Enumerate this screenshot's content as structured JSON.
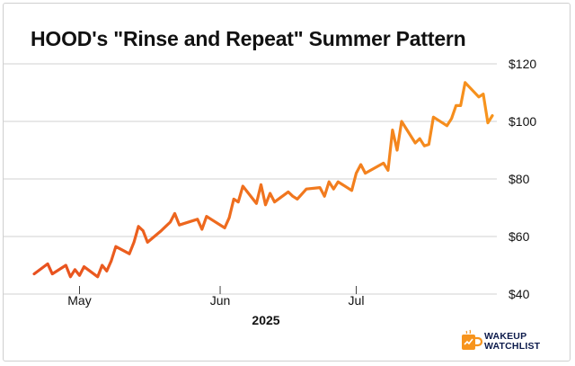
{
  "title": "HOOD's \"Rinse and Repeat\" Summer Pattern",
  "logo": {
    "line1": "WAKEUP",
    "line2": "WATCHLIST"
  },
  "colors": {
    "gradient_start": "#e8501f",
    "gradient_end": "#f7941d",
    "grid": "#d0d0d0",
    "text": "#111111"
  },
  "chart_data": {
    "type": "line",
    "title": "HOOD's \"Rinse and Repeat\" Summer Pattern",
    "xlabel": "2025",
    "ylabel": "",
    "ylim": [
      40,
      125
    ],
    "xlim": [
      "2025-04-21",
      "2025-07-31"
    ],
    "y_ticks": [
      {
        "value": 40,
        "label": "$40"
      },
      {
        "value": 60,
        "label": "$60"
      },
      {
        "value": 80,
        "label": "$80"
      },
      {
        "value": 100,
        "label": "$100"
      },
      {
        "value": 120,
        "label": "$120"
      }
    ],
    "x_ticks": [
      {
        "value": "2025-05-01",
        "label": "May"
      },
      {
        "value": "2025-06-01",
        "label": "Jun"
      },
      {
        "value": "2025-07-01",
        "label": "Jul"
      }
    ],
    "grid": "horizontal",
    "series": [
      {
        "x": [
          "2025-04-21",
          "2025-04-24",
          "2025-04-25",
          "2025-04-28",
          "2025-04-29",
          "2025-04-30",
          "2025-05-01",
          "2025-05-02",
          "2025-05-05",
          "2025-05-06",
          "2025-05-07",
          "2025-05-08",
          "2025-05-09",
          "2025-05-12",
          "2025-05-13",
          "2025-05-14",
          "2025-05-15",
          "2025-05-16",
          "2025-05-19",
          "2025-05-20",
          "2025-05-21",
          "2025-05-22",
          "2025-05-23",
          "2025-05-27",
          "2025-05-28",
          "2025-05-29",
          "2025-05-30",
          "2025-06-02",
          "2025-06-03",
          "2025-06-04",
          "2025-06-05",
          "2025-06-06",
          "2025-06-09",
          "2025-06-10",
          "2025-06-11",
          "2025-06-12",
          "2025-06-13",
          "2025-06-16",
          "2025-06-17",
          "2025-06-18",
          "2025-06-20",
          "2025-06-23",
          "2025-06-24",
          "2025-06-25",
          "2025-06-26",
          "2025-06-27",
          "2025-06-30",
          "2025-07-01",
          "2025-07-02",
          "2025-07-03",
          "2025-07-07",
          "2025-07-08",
          "2025-07-09",
          "2025-07-10",
          "2025-07-11",
          "2025-07-14",
          "2025-07-15",
          "2025-07-16",
          "2025-07-17",
          "2025-07-18",
          "2025-07-21",
          "2025-07-22",
          "2025-07-23",
          "2025-07-24",
          "2025-07-25",
          "2025-07-28",
          "2025-07-29",
          "2025-07-30",
          "2025-07-31"
        ],
        "y": [
          47.0,
          50.5,
          47.0,
          50.0,
          46.0,
          48.5,
          46.5,
          49.5,
          46.0,
          50.0,
          48.0,
          51.5,
          56.5,
          54.0,
          58.0,
          63.5,
          62.0,
          58.0,
          62.0,
          63.5,
          65.0,
          68.0,
          64.0,
          66.0,
          62.5,
          67.0,
          66.0,
          63.0,
          66.5,
          73.0,
          72.0,
          77.5,
          71.5,
          78.0,
          71.0,
          75.0,
          72.0,
          75.5,
          74.0,
          73.0,
          76.5,
          77.0,
          74.0,
          79.0,
          76.5,
          79.0,
          76.0,
          82.0,
          85.0,
          82.0,
          85.5,
          83.0,
          97.0,
          90.0,
          100.0,
          92.5,
          94.0,
          91.5,
          92.0,
          101.5,
          98.5,
          101.0,
          105.5,
          105.5,
          113.5,
          108.5,
          109.5,
          99.5,
          102.0
        ]
      }
    ]
  }
}
